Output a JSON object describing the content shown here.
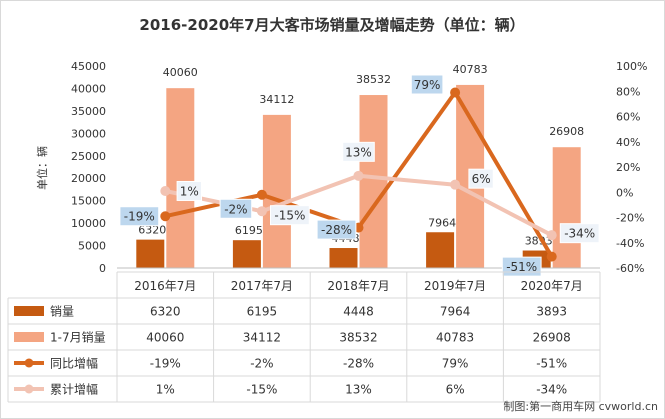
{
  "chart_data": {
    "type": "bar",
    "title": "2016-2020年7月大客市场销量及增幅走势（单位：辆）",
    "ylabel": "单位：辆",
    "categories": [
      "2016年7月",
      "2017年7月",
      "2018年7月",
      "2019年7月",
      "2020年7月"
    ],
    "ylim": [
      0,
      45000
    ],
    "y_ticks": [
      "0",
      "5000",
      "10000",
      "15000",
      "20000",
      "25000",
      "30000",
      "35000",
      "40000",
      "45000"
    ],
    "y2lim": [
      -60,
      100
    ],
    "y2_ticks": [
      "-60%",
      "-40%",
      "-20%",
      "0%",
      "20%",
      "40%",
      "60%",
      "80%",
      "100%"
    ],
    "series": [
      {
        "name": "销量",
        "kind": "bar",
        "color": "#C55A11",
        "values": [
          6320,
          6195,
          4448,
          7964,
          3893
        ],
        "labels": [
          "6320",
          "6195",
          "4448",
          "7964",
          "3893"
        ]
      },
      {
        "name": "1-7月销量",
        "kind": "bar",
        "color": "#F4A582",
        "values": [
          40060,
          34112,
          38532,
          40783,
          26908
        ],
        "labels": [
          "40060",
          "34112",
          "38532",
          "40783",
          "26908"
        ]
      },
      {
        "name": "同比增幅",
        "kind": "line",
        "axis": "right",
        "color": "#D9681E",
        "values": [
          -19,
          -2,
          -28,
          79,
          -51
        ],
        "labels": [
          "-19%",
          "-2%",
          "-28%",
          "79%",
          "-51%"
        ]
      },
      {
        "name": "累计增幅",
        "kind": "line",
        "axis": "right",
        "color": "#F2C3B3",
        "values": [
          1,
          -15,
          13,
          6,
          -34
        ],
        "labels": [
          "1%",
          "-15%",
          "13%",
          "6%",
          "-34%"
        ]
      }
    ],
    "label_box_color": "#BDD7EE",
    "grid": false
  },
  "credit": "制图:第一商用车网 cvworld.cn"
}
